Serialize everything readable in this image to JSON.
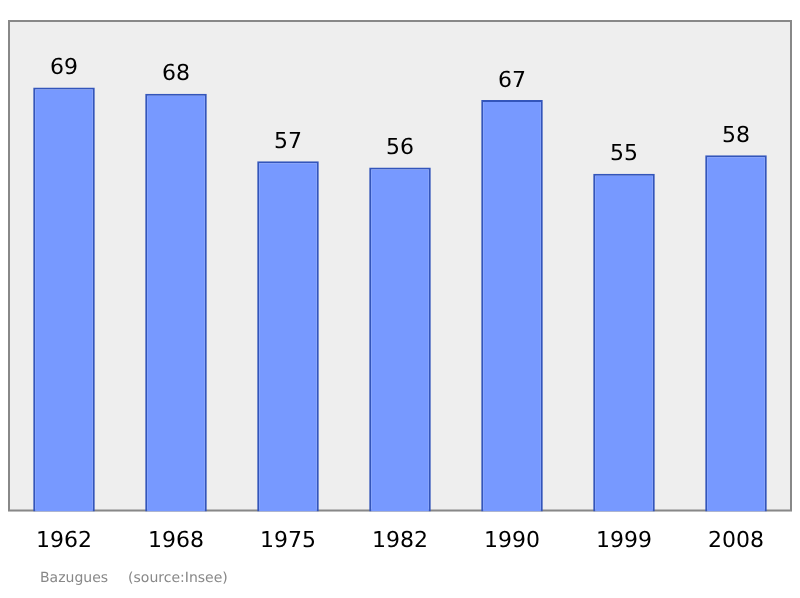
{
  "chart_data": {
    "type": "bar",
    "categories": [
      "1962",
      "1968",
      "1975",
      "1982",
      "1990",
      "1999",
      "2008"
    ],
    "values": [
      69,
      68,
      57,
      56,
      67,
      55,
      58
    ],
    "color": "#7799ff",
    "data_labels": true,
    "grid": false,
    "legend": false,
    "tick_labels": "x",
    "annotations": [
      "Bazugues",
      "(source:Insee)"
    ]
  }
}
